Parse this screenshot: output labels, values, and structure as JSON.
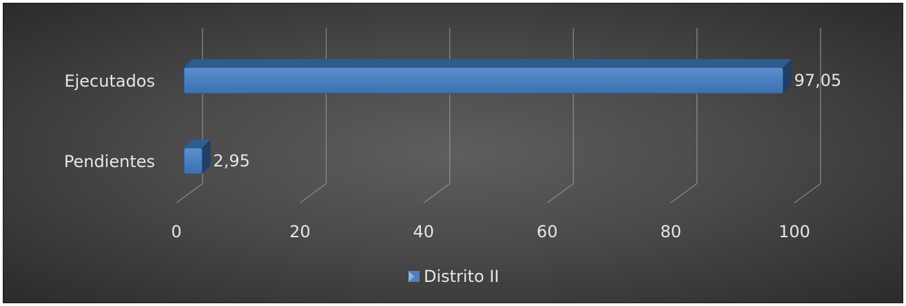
{
  "chart_data": {
    "type": "bar",
    "orientation": "horizontal",
    "style": "3d",
    "categories": [
      "Ejecutados",
      "Pendientes"
    ],
    "series": [
      {
        "name": "Distrito II",
        "values": [
          97.05,
          2.95
        ],
        "value_labels": [
          "97,05",
          "2,95"
        ],
        "color": "#4f81bd"
      }
    ],
    "xlim": [
      0,
      100
    ],
    "x_ticks": [
      "0",
      "20",
      "40",
      "60",
      "80",
      "100"
    ],
    "gridlines": true,
    "legend_position": "bottom",
    "background": "dark-gradient"
  }
}
